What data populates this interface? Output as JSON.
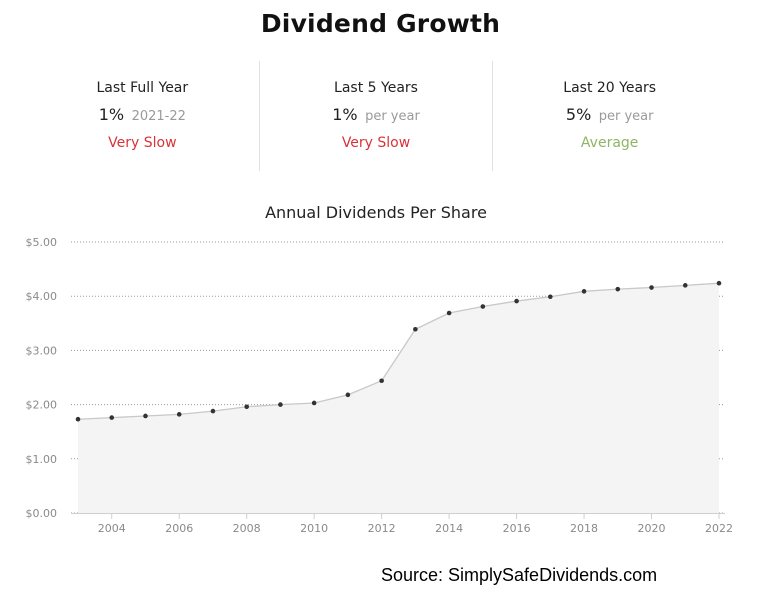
{
  "header": {
    "title": "Dividend Growth"
  },
  "stats": [
    {
      "label": "Last Full Year",
      "value": "1%",
      "sub": "2021-22",
      "rating": "Very Slow",
      "rating_color": "#d8333a"
    },
    {
      "label": "Last 5 Years",
      "value": "1%",
      "sub": "per year",
      "rating": "Very Slow",
      "rating_color": "#d8333a"
    },
    {
      "label": "Last 20 Years",
      "value": "5%",
      "sub": "per year",
      "rating": "Average",
      "rating_color": "#8db565"
    }
  ],
  "chart_data": {
    "type": "area",
    "title": "Annual Dividends Per Share",
    "xlabel": "",
    "ylabel": "",
    "x": [
      2003,
      2004,
      2005,
      2006,
      2007,
      2008,
      2009,
      2010,
      2011,
      2012,
      2013,
      2014,
      2015,
      2016,
      2017,
      2018,
      2019,
      2020,
      2021,
      2022
    ],
    "values": [
      1.73,
      1.76,
      1.79,
      1.82,
      1.88,
      1.96,
      2.0,
      2.03,
      2.18,
      2.44,
      3.39,
      3.69,
      3.81,
      3.91,
      3.99,
      4.09,
      4.13,
      4.16,
      4.2,
      4.24
    ],
    "xticks": [
      "2004",
      "2006",
      "2008",
      "2010",
      "2012",
      "2014",
      "2016",
      "2018",
      "2020",
      "2022"
    ],
    "yticks": [
      "$0.00",
      "$1.00",
      "$2.00",
      "$3.00",
      "$4.00",
      "$5.00"
    ],
    "ylim": [
      0,
      5
    ],
    "grid": true,
    "line_color": "#c8c8c8",
    "fill_color": "#f4f4f4",
    "point_color": "#333333"
  },
  "footer": {
    "source": "Source: SimplySafeDividends.com"
  }
}
